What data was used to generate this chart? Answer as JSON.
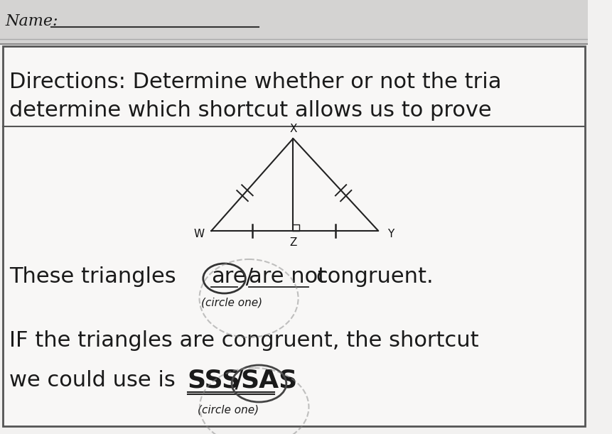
{
  "bg_top": "#c8c8c8",
  "bg_main": "#f2f1f0",
  "paper_white": "#f8f7f6",
  "border_color": "#555555",
  "title_text_line1": "Directions: Determine whether or not the tria",
  "title_text_line2": "determine which shortcut allows us to prove",
  "body_text1": "These triangles",
  "body_choice1a": "are",
  "body_slash1": " / ",
  "body_choice1b": "are not",
  "body_text1_end": "  congruent.",
  "circle_one1": "(circle one)",
  "body_text2_line1": "IF the triangles are congruent, the shortcut",
  "body_text2_line2": "we could use is",
  "body_choice2a": "SSS",
  "body_slash2": " / ",
  "body_choice2b": "SAS",
  "circle_one2": "(circle one)",
  "label_W": "W",
  "label_X": "X",
  "label_Y": "Y",
  "label_Z": "Z",
  "font_color": "#1a1a1a",
  "font_size_title": 22,
  "font_size_body": 22,
  "font_size_choice": 22,
  "font_size_shortcut": 26,
  "font_size_label": 11,
  "font_size_circleone": 11
}
